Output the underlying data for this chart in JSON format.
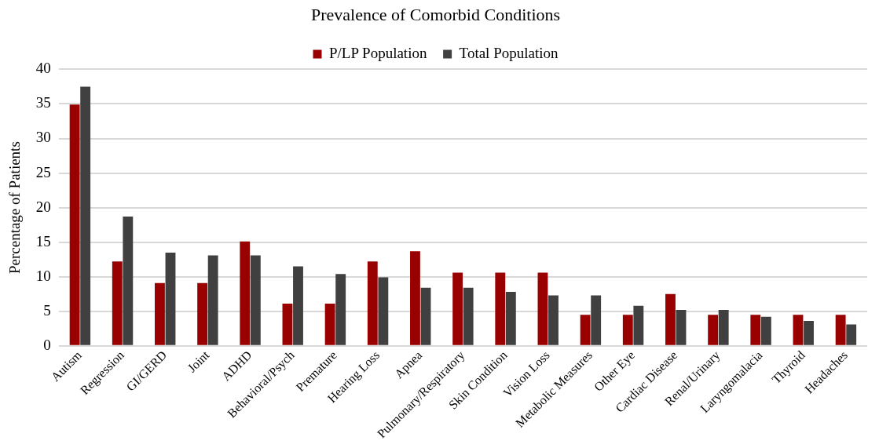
{
  "chart_data": {
    "type": "bar",
    "title": "Prevalence of Comorbid Conditions",
    "ylabel": "Percentage of Patients",
    "categories": [
      "Autism",
      "Regression",
      "GI/GERD",
      "Joint",
      "ADHD",
      "Behavioral/Psych",
      "Premature",
      "Hearing Loss",
      "Apnea",
      "Pulmonary/Respiratory",
      "Skin Condition",
      "Vision Loss",
      "Metabolic Measures",
      "Other Eye",
      "Cardiac Disease",
      "Renal/Urinary",
      "Laryngomalacia",
      "Thyroid",
      "Headaches"
    ],
    "series": [
      {
        "name": "P/LP Population",
        "color": "#990000",
        "values": [
          34.9,
          12.2,
          9.1,
          9.1,
          15.1,
          6.1,
          6.1,
          12.2,
          13.7,
          10.6,
          10.6,
          10.6,
          4.5,
          4.5,
          7.5,
          4.5,
          4.5,
          4.5,
          4.5
        ]
      },
      {
        "name": "Total Population",
        "color": "#404040",
        "values": [
          37.5,
          18.7,
          13.5,
          13.1,
          13.1,
          11.5,
          10.4,
          9.9,
          8.4,
          8.4,
          7.8,
          7.3,
          7.3,
          5.8,
          5.2,
          5.2,
          4.2,
          3.6,
          3.1
        ]
      }
    ],
    "ylim": [
      0,
      40
    ],
    "yticks": [
      0,
      5,
      10,
      15,
      20,
      25,
      30,
      35,
      40
    ],
    "grid": "y",
    "legend": "top"
  }
}
